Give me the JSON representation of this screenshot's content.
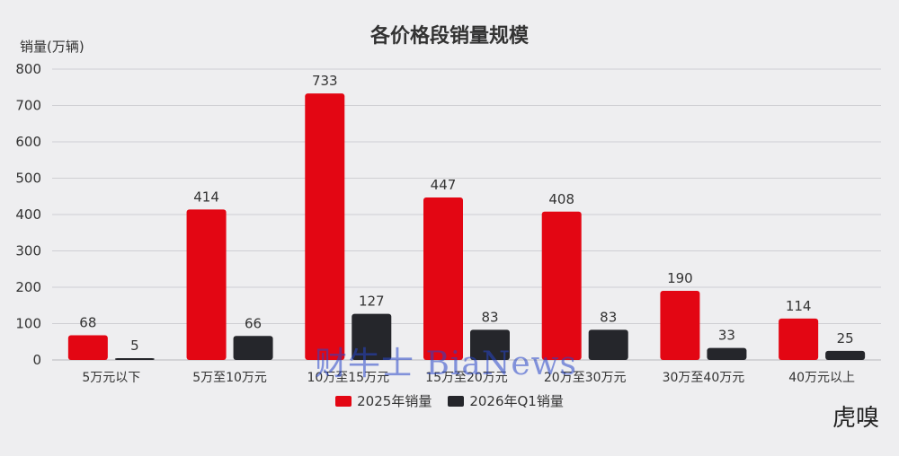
{
  "chart_data": {
    "type": "bar",
    "title": "各价格段销量规模",
    "ylabel": "销量(万辆)",
    "xlabel": "",
    "ylim": [
      0,
      800
    ],
    "yticks": [
      "0",
      "100",
      "200",
      "300",
      "400",
      "500",
      "600",
      "700",
      "800"
    ],
    "grid": true,
    "legend_position": "bottom",
    "categories": [
      "5万元以下",
      "5万至10万元",
      "10万至15万元",
      "15万至20万元",
      "20万至30万元",
      "30万至40万元",
      "40万元以上"
    ],
    "series": [
      {
        "name": "2025年销量",
        "color": "#e30613",
        "values": [
          68,
          414,
          733,
          447,
          408,
          190,
          114
        ]
      },
      {
        "name": "2026年Q1销量",
        "color": "#25262b",
        "values": [
          5,
          66,
          127,
          83,
          83,
          33,
          25
        ]
      }
    ]
  },
  "watermark": "财牛士 BiaNews",
  "logo": "虎嗅"
}
